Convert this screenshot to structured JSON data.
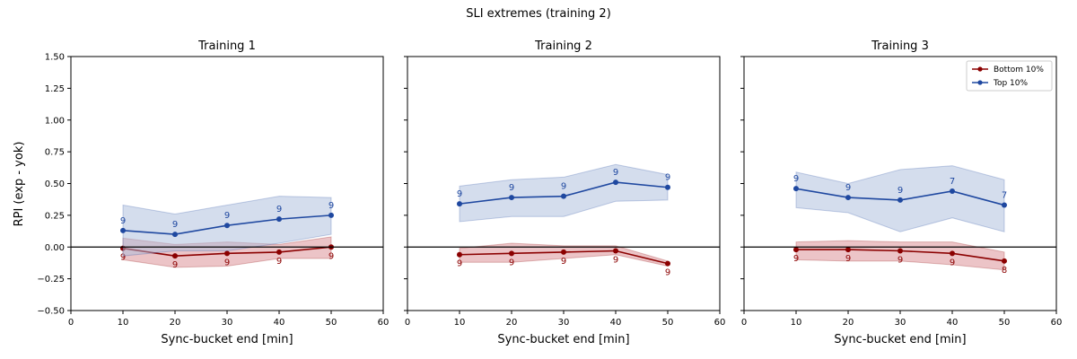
{
  "colors": {
    "bottom": "#8b0000",
    "top": "#1f48a0",
    "bottom_band": "#d98a90",
    "top_band": "#a9bcdc"
  },
  "chart_data": {
    "type": "line",
    "suptitle": "SLI extremes (training 2)",
    "xlabel": "Sync-bucket end [min]",
    "ylabel": "RPI (exp - yok)",
    "xlim": [
      0,
      60
    ],
    "ylim": [
      -0.5,
      1.5
    ],
    "xticks": [
      "0",
      "10",
      "20",
      "30",
      "40",
      "50",
      "60"
    ],
    "yticks": [
      "−0.50",
      "−0.25",
      "0.00",
      "0.25",
      "0.50",
      "0.75",
      "1.00",
      "1.25",
      "1.50"
    ],
    "ytick_values": [
      -0.5,
      -0.25,
      0,
      0.25,
      0.5,
      0.75,
      1.0,
      1.25,
      1.5
    ],
    "xtick_values": [
      0,
      10,
      20,
      30,
      40,
      50,
      60
    ],
    "legend": {
      "placement": "top-right",
      "entries": [
        "Bottom 10%",
        "Top 10%"
      ]
    },
    "panels": [
      {
        "title": "Training 1",
        "x": [
          10,
          20,
          30,
          40,
          50
        ],
        "series": [
          {
            "name": "Bottom 10%",
            "values": [
              -0.01,
              -0.07,
              -0.05,
              -0.04,
              0.0
            ],
            "ci_low": [
              -0.1,
              -0.16,
              -0.15,
              -0.09,
              -0.09
            ],
            "ci_high": [
              0.07,
              0.02,
              0.04,
              0.02,
              0.08
            ],
            "n": [
              "9",
              "9",
              "9",
              "9",
              "9"
            ]
          },
          {
            "name": "Top 10%",
            "values": [
              0.13,
              0.1,
              0.17,
              0.22,
              0.25
            ],
            "ci_low": [
              -0.07,
              -0.03,
              -0.03,
              0.03,
              0.1
            ],
            "ci_high": [
              0.33,
              0.26,
              0.33,
              0.4,
              0.39
            ],
            "n": [
              "9",
              "9",
              "9",
              "9",
              "9"
            ]
          }
        ]
      },
      {
        "title": "Training 2",
        "x": [
          10,
          20,
          30,
          40,
          50
        ],
        "series": [
          {
            "name": "Bottom 10%",
            "values": [
              -0.06,
              -0.05,
              -0.04,
              -0.03,
              -0.13
            ],
            "ci_low": [
              -0.12,
              -0.12,
              -0.09,
              -0.06,
              -0.15
            ],
            "ci_high": [
              -0.01,
              0.03,
              0.01,
              0.01,
              -0.11
            ],
            "n": [
              "9",
              "9",
              "9",
              "9",
              "9"
            ]
          },
          {
            "name": "Top 10%",
            "values": [
              0.34,
              0.39,
              0.4,
              0.51,
              0.47
            ],
            "ci_low": [
              0.2,
              0.24,
              0.24,
              0.36,
              0.37
            ],
            "ci_high": [
              0.48,
              0.53,
              0.55,
              0.65,
              0.57
            ],
            "n": [
              "9",
              "9",
              "9",
              "9",
              "9"
            ]
          }
        ]
      },
      {
        "title": "Training 3",
        "x": [
          10,
          20,
          30,
          40,
          50
        ],
        "series": [
          {
            "name": "Bottom 10%",
            "values": [
              -0.02,
              -0.02,
              -0.03,
              -0.05,
              -0.11
            ],
            "ci_low": [
              -0.1,
              -0.11,
              -0.11,
              -0.14,
              -0.18
            ],
            "ci_high": [
              0.04,
              0.05,
              0.04,
              0.04,
              -0.04
            ],
            "n": [
              "9",
              "9",
              "9",
              "9",
              "8"
            ]
          },
          {
            "name": "Top 10%",
            "values": [
              0.46,
              0.39,
              0.37,
              0.44,
              0.33
            ],
            "ci_low": [
              0.31,
              0.27,
              0.12,
              0.23,
              0.12
            ],
            "ci_high": [
              0.59,
              0.5,
              0.61,
              0.64,
              0.53
            ],
            "n": [
              "9",
              "9",
              "9",
              "7",
              "7"
            ]
          }
        ]
      }
    ]
  }
}
